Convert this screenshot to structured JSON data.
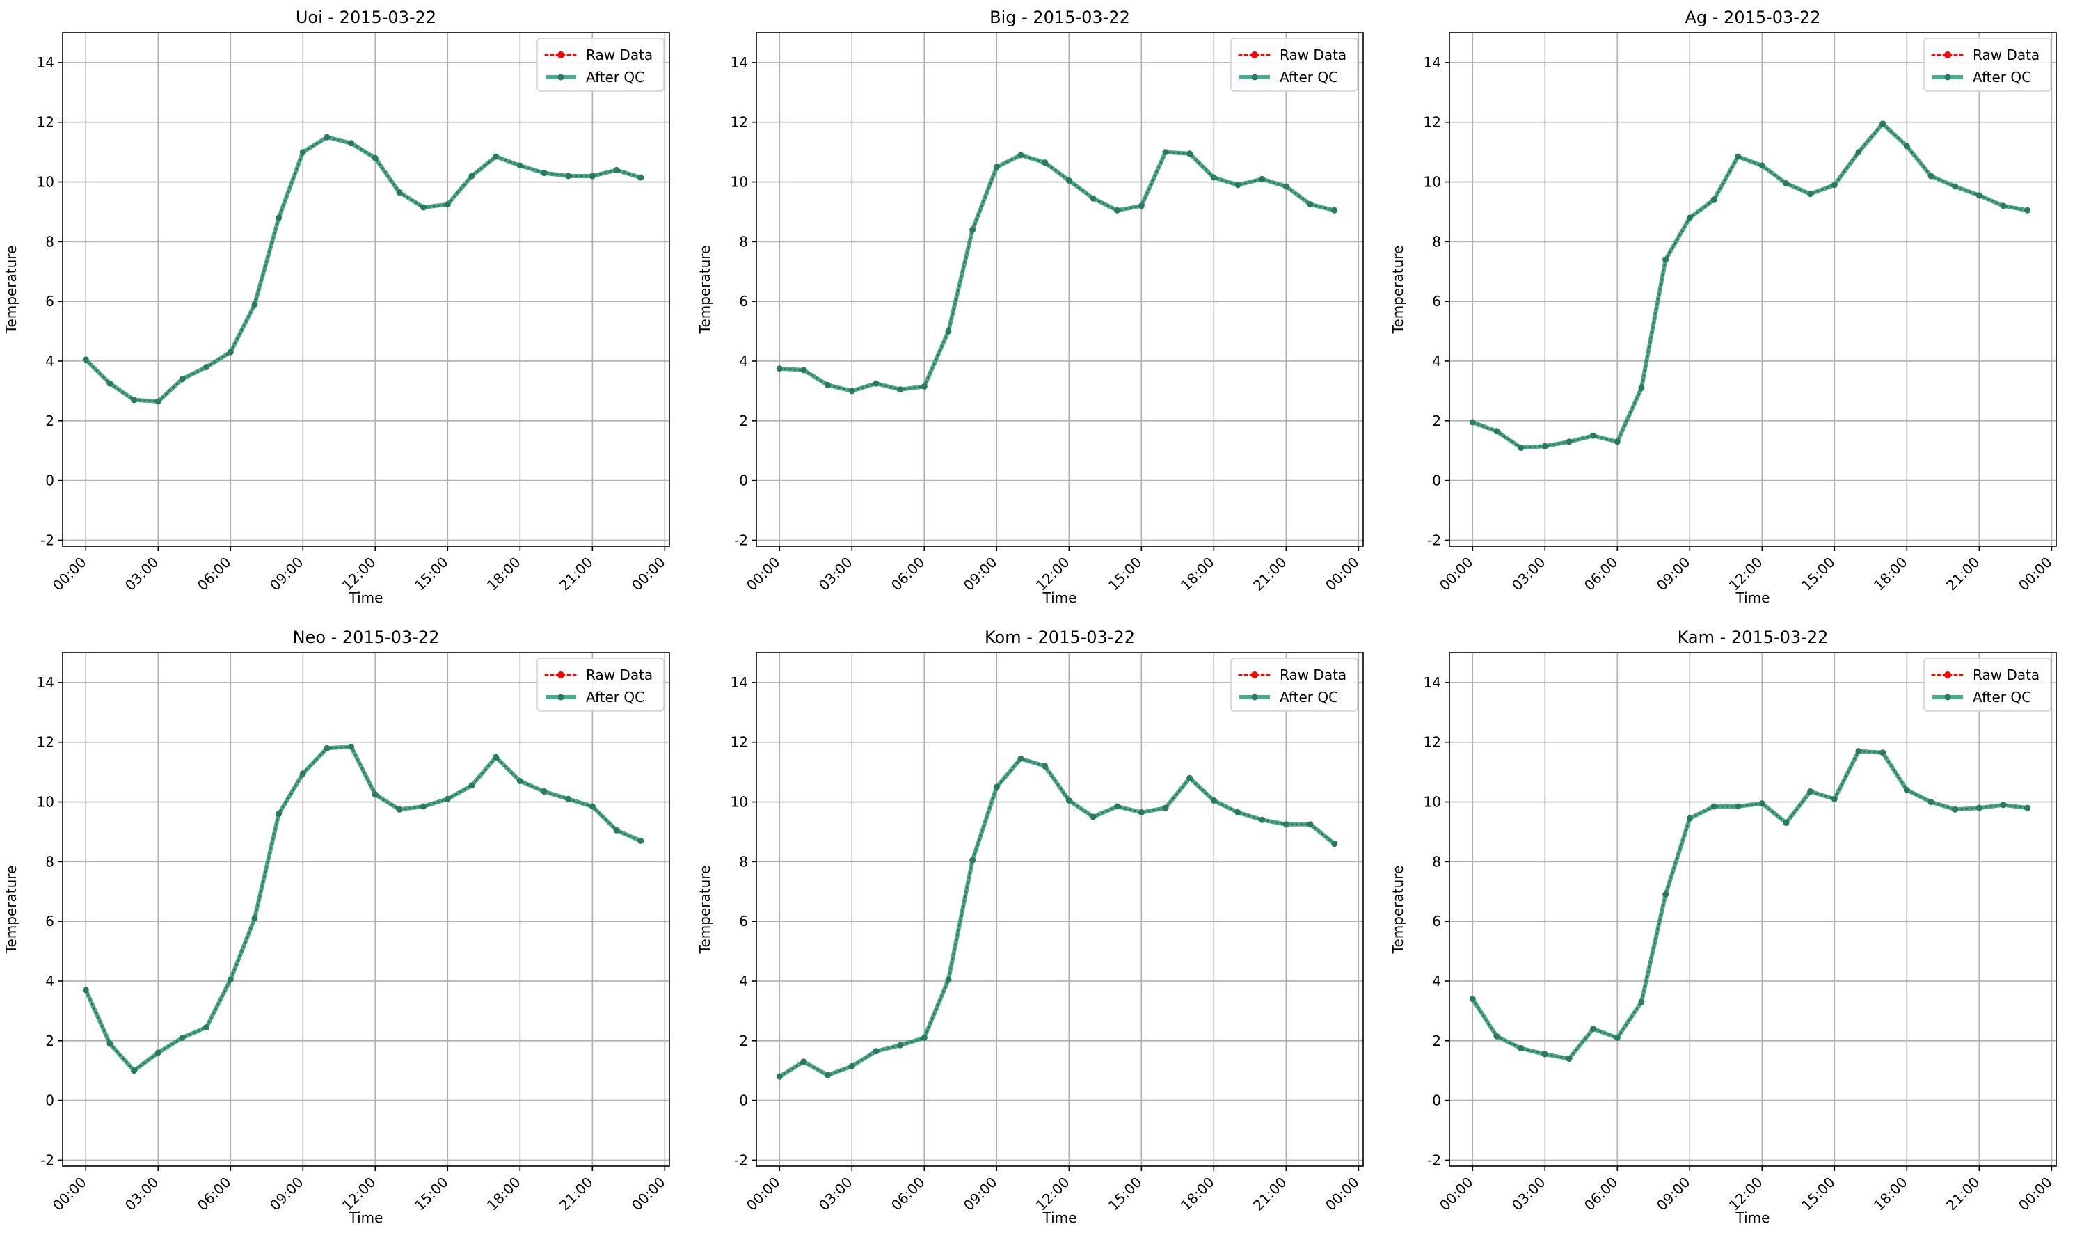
{
  "figure": {
    "legend_labels": {
      "raw": "Raw Data",
      "qc": "After QC"
    },
    "colors": {
      "raw": "#ff0000",
      "qc": "#2a9d7a",
      "grid": "#b0b0b0",
      "axis": "#000000"
    }
  },
  "chart_data": [
    {
      "type": "line",
      "title": "Uoi - 2015-03-22",
      "xlabel": "Time",
      "ylabel": "Temperature",
      "x_tick_labels": [
        "00:00",
        "03:00",
        "06:00",
        "09:00",
        "12:00",
        "15:00",
        "18:00",
        "21:00",
        "00:00"
      ],
      "y_ticks": [
        -2,
        0,
        2,
        4,
        6,
        8,
        10,
        12,
        14
      ],
      "xlim": [
        "2015-03-22 00:00",
        "2015-03-23 00:00"
      ],
      "ylim": [
        -2.2,
        15
      ],
      "grid": true,
      "legend_position": "top-right",
      "x": [
        "00:00",
        "01:00",
        "02:00",
        "03:00",
        "04:00",
        "05:00",
        "06:00",
        "07:00",
        "08:00",
        "09:00",
        "10:00",
        "11:00",
        "12:00",
        "13:00",
        "14:00",
        "15:00",
        "16:00",
        "17:00",
        "18:00",
        "19:00",
        "20:00",
        "21:00",
        "22:00",
        "23:00"
      ],
      "series": [
        {
          "name": "Raw Data",
          "values": [
            4.05,
            3.25,
            2.7,
            2.65,
            3.4,
            3.8,
            4.3,
            5.9,
            8.8,
            11.0,
            11.5,
            11.3,
            10.8,
            9.65,
            9.15,
            9.25,
            10.2,
            10.85,
            10.55,
            10.3,
            10.2,
            10.2,
            10.4,
            10.15
          ]
        },
        {
          "name": "After QC",
          "values": [
            4.05,
            3.25,
            2.7,
            2.65,
            3.4,
            3.8,
            4.3,
            5.9,
            8.8,
            11.0,
            11.5,
            11.3,
            10.8,
            9.65,
            9.15,
            9.25,
            10.2,
            10.85,
            10.55,
            10.3,
            10.2,
            10.2,
            10.4,
            10.15
          ]
        }
      ]
    },
    {
      "type": "line",
      "title": "Big - 2015-03-22",
      "xlabel": "Time",
      "ylabel": "Temperature",
      "x_tick_labels": [
        "00:00",
        "03:00",
        "06:00",
        "09:00",
        "12:00",
        "15:00",
        "18:00",
        "21:00",
        "00:00"
      ],
      "y_ticks": [
        -2,
        0,
        2,
        4,
        6,
        8,
        10,
        12,
        14
      ],
      "xlim": [
        "2015-03-22 00:00",
        "2015-03-23 00:00"
      ],
      "ylim": [
        -2.2,
        15
      ],
      "grid": true,
      "legend_position": "top-right",
      "x": [
        "00:00",
        "01:00",
        "02:00",
        "03:00",
        "04:00",
        "05:00",
        "06:00",
        "07:00",
        "08:00",
        "09:00",
        "10:00",
        "11:00",
        "12:00",
        "13:00",
        "14:00",
        "15:00",
        "16:00",
        "17:00",
        "18:00",
        "19:00",
        "20:00",
        "21:00",
        "22:00",
        "23:00"
      ],
      "series": [
        {
          "name": "Raw Data",
          "values": [
            3.75,
            3.7,
            3.2,
            3.0,
            3.25,
            3.05,
            3.15,
            5.0,
            8.4,
            10.5,
            10.9,
            10.65,
            10.05,
            9.45,
            9.05,
            9.2,
            11.0,
            10.95,
            10.15,
            9.9,
            10.1,
            9.85,
            9.25,
            9.05
          ]
        },
        {
          "name": "After QC",
          "values": [
            3.75,
            3.7,
            3.2,
            3.0,
            3.25,
            3.05,
            3.15,
            5.0,
            8.4,
            10.5,
            10.9,
            10.65,
            10.05,
            9.45,
            9.05,
            9.2,
            11.0,
            10.95,
            10.15,
            9.9,
            10.1,
            9.85,
            9.25,
            9.05
          ]
        }
      ]
    },
    {
      "type": "line",
      "title": "Ag - 2015-03-22",
      "xlabel": "Time",
      "ylabel": "Temperature",
      "x_tick_labels": [
        "00:00",
        "03:00",
        "06:00",
        "09:00",
        "12:00",
        "15:00",
        "18:00",
        "21:00",
        "00:00"
      ],
      "y_ticks": [
        -2,
        0,
        2,
        4,
        6,
        8,
        10,
        12,
        14
      ],
      "xlim": [
        "2015-03-22 00:00",
        "2015-03-23 00:00"
      ],
      "ylim": [
        -2.2,
        15
      ],
      "grid": true,
      "legend_position": "top-right",
      "x": [
        "00:00",
        "01:00",
        "02:00",
        "03:00",
        "04:00",
        "05:00",
        "06:00",
        "07:00",
        "08:00",
        "09:00",
        "10:00",
        "11:00",
        "12:00",
        "13:00",
        "14:00",
        "15:00",
        "16:00",
        "17:00",
        "18:00",
        "19:00",
        "20:00",
        "21:00",
        "22:00",
        "23:00"
      ],
      "series": [
        {
          "name": "Raw Data",
          "values": [
            1.95,
            1.65,
            1.1,
            1.15,
            1.3,
            1.5,
            1.3,
            3.1,
            7.4,
            8.8,
            9.4,
            10.85,
            10.55,
            9.95,
            9.6,
            9.9,
            11.0,
            11.95,
            11.2,
            10.2,
            9.85,
            9.55,
            9.2,
            9.05
          ]
        },
        {
          "name": "After QC",
          "values": [
            1.95,
            1.65,
            1.1,
            1.15,
            1.3,
            1.5,
            1.3,
            3.1,
            7.4,
            8.8,
            9.4,
            10.85,
            10.55,
            9.95,
            9.6,
            9.9,
            11.0,
            11.95,
            11.2,
            10.2,
            9.85,
            9.55,
            9.2,
            9.05
          ]
        }
      ]
    },
    {
      "type": "line",
      "title": "Neo - 2015-03-22",
      "xlabel": "Time",
      "ylabel": "Temperature",
      "x_tick_labels": [
        "00:00",
        "03:00",
        "06:00",
        "09:00",
        "12:00",
        "15:00",
        "18:00",
        "21:00",
        "00:00"
      ],
      "y_ticks": [
        -2,
        0,
        2,
        4,
        6,
        8,
        10,
        12,
        14
      ],
      "xlim": [
        "2015-03-22 00:00",
        "2015-03-23 00:00"
      ],
      "ylim": [
        -2.2,
        15
      ],
      "grid": true,
      "legend_position": "top-right",
      "x": [
        "00:00",
        "01:00",
        "02:00",
        "03:00",
        "04:00",
        "05:00",
        "06:00",
        "07:00",
        "08:00",
        "09:00",
        "10:00",
        "11:00",
        "12:00",
        "13:00",
        "14:00",
        "15:00",
        "16:00",
        "17:00",
        "18:00",
        "19:00",
        "20:00",
        "21:00",
        "22:00",
        "23:00"
      ],
      "series": [
        {
          "name": "Raw Data",
          "values": [
            3.7,
            1.9,
            1.0,
            1.6,
            2.1,
            2.45,
            4.05,
            6.1,
            9.6,
            10.95,
            11.8,
            11.85,
            10.25,
            9.75,
            9.85,
            10.1,
            10.55,
            11.5,
            10.7,
            10.35,
            10.1,
            9.85,
            9.05,
            8.7
          ]
        },
        {
          "name": "After QC",
          "values": [
            3.7,
            1.9,
            1.0,
            1.6,
            2.1,
            2.45,
            4.05,
            6.1,
            9.6,
            10.95,
            11.8,
            11.85,
            10.25,
            9.75,
            9.85,
            10.1,
            10.55,
            11.5,
            10.7,
            10.35,
            10.1,
            9.85,
            9.05,
            8.7
          ]
        }
      ]
    },
    {
      "type": "line",
      "title": "Kom - 2015-03-22",
      "xlabel": "Time",
      "ylabel": "Temperature",
      "x_tick_labels": [
        "00:00",
        "03:00",
        "06:00",
        "09:00",
        "12:00",
        "15:00",
        "18:00",
        "21:00",
        "00:00"
      ],
      "y_ticks": [
        -2,
        0,
        2,
        4,
        6,
        8,
        10,
        12,
        14
      ],
      "xlim": [
        "2015-03-22 00:00",
        "2015-03-23 00:00"
      ],
      "ylim": [
        -2.2,
        15
      ],
      "grid": true,
      "legend_position": "top-right",
      "x": [
        "00:00",
        "01:00",
        "02:00",
        "03:00",
        "04:00",
        "05:00",
        "06:00",
        "07:00",
        "08:00",
        "09:00",
        "10:00",
        "11:00",
        "12:00",
        "13:00",
        "14:00",
        "15:00",
        "16:00",
        "17:00",
        "18:00",
        "19:00",
        "20:00",
        "21:00",
        "22:00",
        "23:00"
      ],
      "series": [
        {
          "name": "Raw Data",
          "values": [
            0.8,
            1.3,
            0.85,
            1.15,
            1.65,
            1.85,
            2.1,
            4.05,
            8.05,
            10.5,
            11.45,
            11.2,
            10.05,
            9.5,
            9.85,
            9.65,
            9.8,
            10.8,
            10.05,
            9.65,
            9.4,
            9.25,
            9.25,
            8.6
          ]
        },
        {
          "name": "After QC",
          "values": [
            0.8,
            1.3,
            0.85,
            1.15,
            1.65,
            1.85,
            2.1,
            4.05,
            8.05,
            10.5,
            11.45,
            11.2,
            10.05,
            9.5,
            9.85,
            9.65,
            9.8,
            10.8,
            10.05,
            9.65,
            9.4,
            9.25,
            9.25,
            8.6
          ]
        }
      ]
    },
    {
      "type": "line",
      "title": "Kam - 2015-03-22",
      "xlabel": "Time",
      "ylabel": "Temperature",
      "x_tick_labels": [
        "00:00",
        "03:00",
        "06:00",
        "09:00",
        "12:00",
        "15:00",
        "18:00",
        "21:00",
        "00:00"
      ],
      "y_ticks": [
        -2,
        0,
        2,
        4,
        6,
        8,
        10,
        12,
        14
      ],
      "xlim": [
        "2015-03-22 00:00",
        "2015-03-23 00:00"
      ],
      "ylim": [
        -2.2,
        15
      ],
      "grid": true,
      "legend_position": "top-right",
      "x": [
        "00:00",
        "01:00",
        "02:00",
        "03:00",
        "04:00",
        "05:00",
        "06:00",
        "07:00",
        "08:00",
        "09:00",
        "10:00",
        "11:00",
        "12:00",
        "13:00",
        "14:00",
        "15:00",
        "16:00",
        "17:00",
        "18:00",
        "19:00",
        "20:00",
        "21:00",
        "22:00",
        "23:00"
      ],
      "series": [
        {
          "name": "Raw Data",
          "values": [
            3.4,
            2.15,
            1.75,
            1.55,
            1.4,
            2.4,
            2.1,
            3.3,
            6.9,
            9.45,
            9.85,
            9.85,
            9.95,
            9.3,
            10.35,
            10.1,
            11.7,
            11.65,
            10.4,
            10.0,
            9.75,
            9.8,
            9.9,
            9.8
          ]
        },
        {
          "name": "After QC",
          "values": [
            3.4,
            2.15,
            1.75,
            1.55,
            1.4,
            2.4,
            2.1,
            3.3,
            6.9,
            9.45,
            9.85,
            9.85,
            9.95,
            9.3,
            10.35,
            10.1,
            11.7,
            11.65,
            10.4,
            10.0,
            9.75,
            9.8,
            9.9,
            9.8
          ]
        }
      ]
    }
  ]
}
